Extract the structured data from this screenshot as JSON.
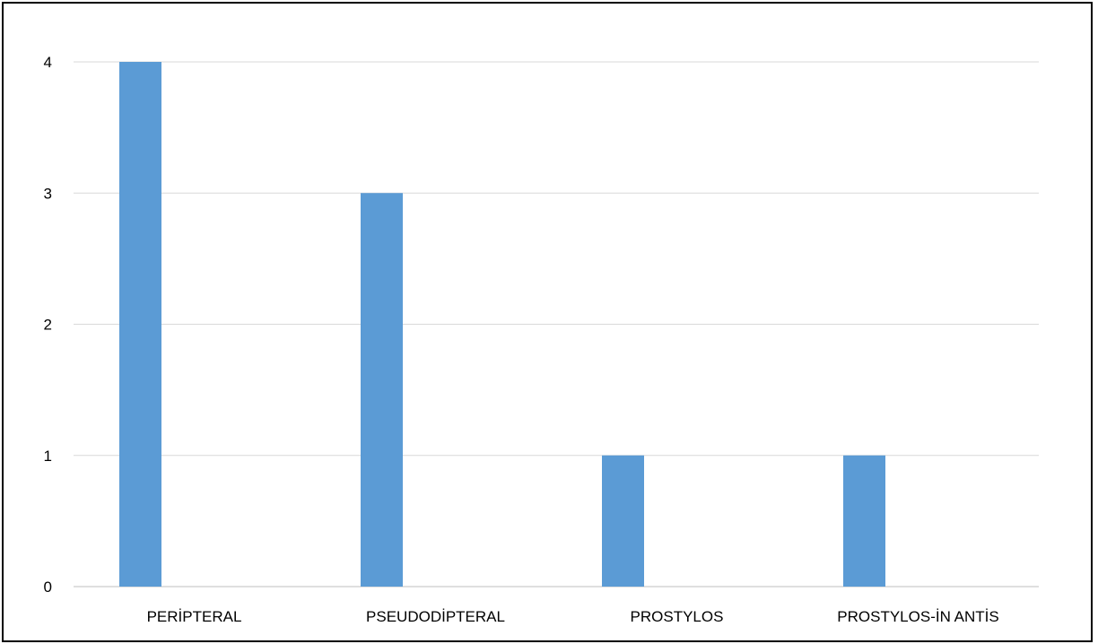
{
  "chart_data": {
    "type": "bar",
    "title": "",
    "xlabel": "",
    "ylabel": "",
    "categories": [
      "PERİPTERAL",
      "PSEUDODİPTERAL",
      "PROSTYLOS",
      "PROSTYLOS-İN ANTİS"
    ],
    "series": [
      {
        "values": [
          4,
          3,
          1,
          1
        ],
        "color": "#5B9BD5"
      }
    ],
    "ylim": [
      0,
      4
    ],
    "yticks": [
      0,
      1,
      2,
      3,
      4
    ],
    "grid": true,
    "legend": "none"
  },
  "colors": {
    "bar": "#5B9BD5",
    "grid": "#D9D9D9",
    "axis": "#BFBFBF",
    "frame": "#000000"
  }
}
